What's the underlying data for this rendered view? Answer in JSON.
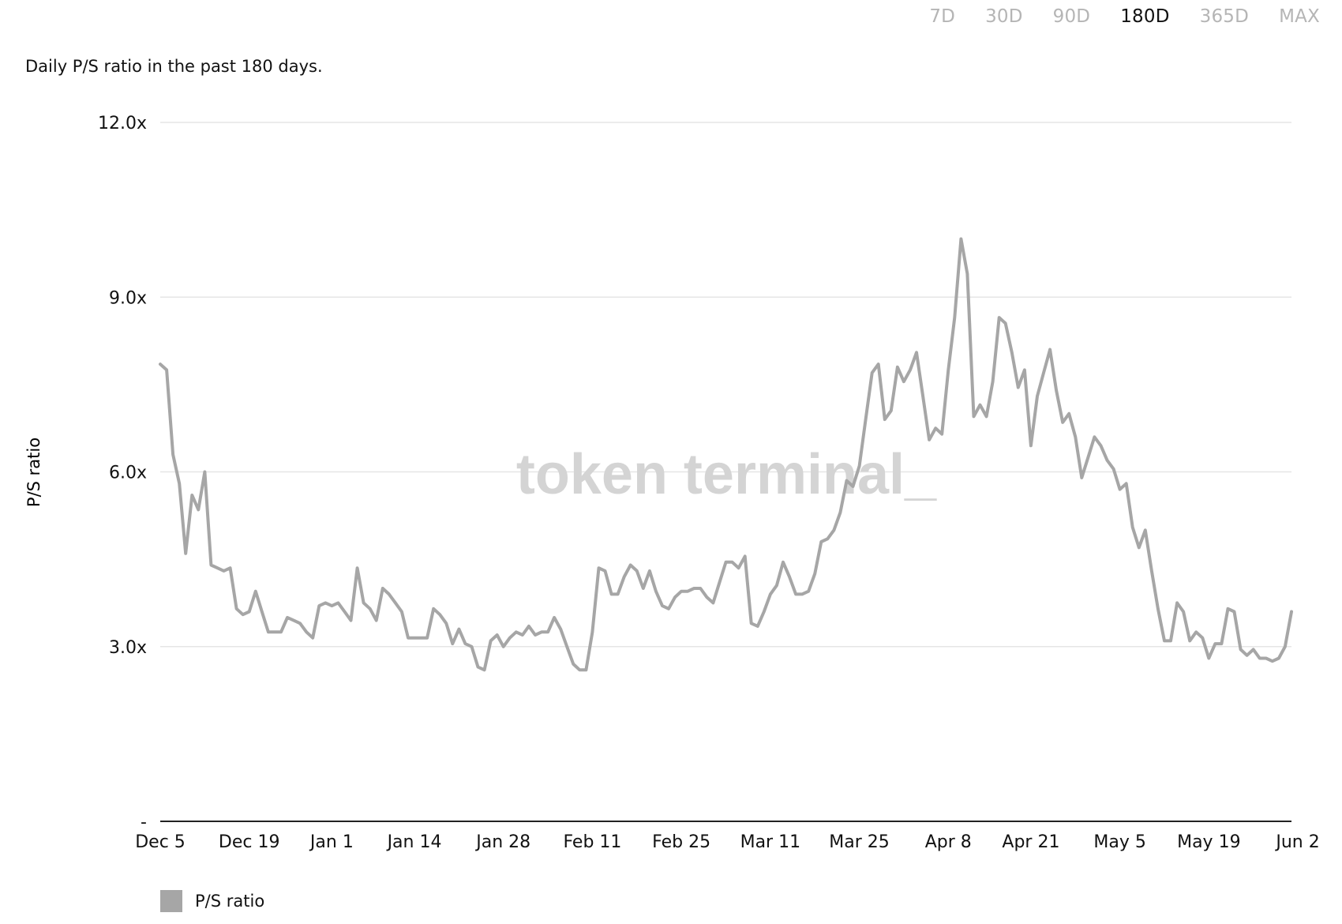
{
  "range_tabs": [
    {
      "label": "7D",
      "active": false
    },
    {
      "label": "30D",
      "active": false
    },
    {
      "label": "90D",
      "active": false
    },
    {
      "label": "180D",
      "active": true
    },
    {
      "label": "365D",
      "active": false
    },
    {
      "label": "MAX",
      "active": false
    }
  ],
  "subtitle": "Daily P/S ratio in the past 180 days.",
  "watermark": "token terminal_",
  "colors": {
    "line": "#a6a6a6",
    "grid": "#e6e6e6",
    "axis": "#222222",
    "watermark": "#d4d4d4"
  },
  "chart_data": {
    "type": "line",
    "ylabel": "P/S ratio",
    "ylim": [
      0,
      12
    ],
    "y_ticks": [
      {
        "value": 0,
        "label": "-"
      },
      {
        "value": 3,
        "label": "3.0x"
      },
      {
        "value": 6,
        "label": "6.0x"
      },
      {
        "value": 9,
        "label": "9.0x"
      },
      {
        "value": 12,
        "label": "12.0x"
      }
    ],
    "x_ticks": [
      {
        "index": 0,
        "label": "Dec 5"
      },
      {
        "index": 14,
        "label": "Dec 19"
      },
      {
        "index": 27,
        "label": "Jan 1"
      },
      {
        "index": 40,
        "label": "Jan 14"
      },
      {
        "index": 54,
        "label": "Jan 28"
      },
      {
        "index": 68,
        "label": "Feb 11"
      },
      {
        "index": 82,
        "label": "Feb 25"
      },
      {
        "index": 96,
        "label": "Mar 11"
      },
      {
        "index": 110,
        "label": "Mar 25"
      },
      {
        "index": 124,
        "label": "Apr 8"
      },
      {
        "index": 137,
        "label": "Apr 21"
      },
      {
        "index": 151,
        "label": "May 5"
      },
      {
        "index": 165,
        "label": "May 19"
      },
      {
        "index": 179,
        "label": "Jun 2"
      }
    ],
    "grid": true,
    "legend_position": "bottom-left",
    "series": [
      {
        "name": "P/S ratio",
        "values": [
          7.85,
          7.75,
          6.3,
          5.8,
          4.6,
          5.6,
          5.35,
          6.0,
          4.4,
          4.35,
          4.3,
          4.35,
          3.65,
          3.55,
          3.6,
          3.95,
          3.6,
          3.25,
          3.25,
          3.25,
          3.5,
          3.45,
          3.4,
          3.25,
          3.15,
          3.7,
          3.75,
          3.7,
          3.75,
          3.6,
          3.45,
          4.35,
          3.75,
          3.65,
          3.45,
          4.0,
          3.9,
          3.75,
          3.6,
          3.15,
          3.15,
          3.15,
          3.15,
          3.65,
          3.55,
          3.4,
          3.05,
          3.3,
          3.05,
          3.0,
          2.65,
          2.6,
          3.1,
          3.2,
          3.0,
          3.15,
          3.25,
          3.2,
          3.35,
          3.2,
          3.25,
          3.25,
          3.5,
          3.3,
          3.0,
          2.7,
          2.6,
          2.6,
          3.25,
          4.35,
          4.3,
          3.9,
          3.9,
          4.2,
          4.4,
          4.3,
          4.0,
          4.3,
          3.95,
          3.7,
          3.65,
          3.85,
          3.95,
          3.95,
          4.0,
          4.0,
          3.85,
          3.75,
          4.1,
          4.45,
          4.45,
          4.35,
          4.55,
          3.4,
          3.35,
          3.6,
          3.9,
          4.05,
          4.45,
          4.2,
          3.9,
          3.9,
          3.95,
          4.25,
          4.8,
          4.85,
          5.0,
          5.3,
          5.85,
          5.75,
          6.1,
          6.9,
          7.7,
          7.85,
          6.9,
          7.05,
          7.8,
          7.55,
          7.75,
          8.05,
          7.3,
          6.55,
          6.75,
          6.65,
          7.75,
          8.65,
          10.0,
          9.4,
          6.95,
          7.15,
          6.95,
          7.55,
          8.65,
          8.55,
          8.05,
          7.45,
          7.75,
          6.45,
          7.3,
          7.7,
          8.1,
          7.4,
          6.85,
          7.0,
          6.6,
          5.9,
          6.25,
          6.6,
          6.45,
          6.2,
          6.05,
          5.7,
          5.8,
          5.05,
          4.7,
          5.0,
          4.3,
          3.65,
          3.1,
          3.1,
          3.75,
          3.6,
          3.1,
          3.25,
          3.15,
          2.8,
          3.05,
          3.05,
          3.65,
          3.6,
          2.95,
          2.85,
          2.95,
          2.8,
          2.8,
          2.75,
          2.8,
          3.0,
          3.6
        ]
      }
    ]
  },
  "legend": {
    "label": "P/S ratio"
  }
}
